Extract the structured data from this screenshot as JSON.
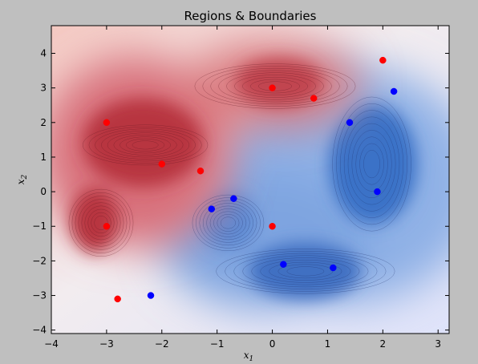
{
  "chart_data": {
    "type": "scatter",
    "title": "Regions & Boundaries",
    "xlabel": "x",
    "xlabel_sub": "1",
    "ylabel": "x",
    "ylabel_sub": "2",
    "xlim": [
      -4,
      3.2
    ],
    "ylim": [
      -4.1,
      4.8
    ],
    "xticks": [
      -4,
      -3,
      -2,
      -1,
      0,
      1,
      2,
      3
    ],
    "yticks": [
      -4,
      -3,
      -2,
      -1,
      0,
      1,
      2,
      3,
      4
    ],
    "background": "filled contour: red class region (upper-left) and blue class region (lower-right)",
    "colors": {
      "red": "#ff0000",
      "blue": "#0000ff",
      "red_region": "#c0303a",
      "blue_region": "#3a6fc4"
    },
    "series": [
      {
        "color": "red",
        "points": [
          {
            "x": -3.0,
            "y": 2.0
          },
          {
            "x": -3.0,
            "y": -1.0
          },
          {
            "x": -2.8,
            "y": -3.1
          },
          {
            "x": -2.0,
            "y": 0.8
          },
          {
            "x": -1.3,
            "y": 0.6
          },
          {
            "x": 0.0,
            "y": 3.0
          },
          {
            "x": 0.0,
            "y": -1.0
          },
          {
            "x": 0.75,
            "y": 2.7
          },
          {
            "x": 2.0,
            "y": 3.8
          }
        ]
      },
      {
        "color": "blue",
        "points": [
          {
            "x": -2.2,
            "y": -3.0
          },
          {
            "x": -1.1,
            "y": -0.5
          },
          {
            "x": -0.7,
            "y": -0.2
          },
          {
            "x": 0.2,
            "y": -2.1
          },
          {
            "x": 1.1,
            "y": -2.2
          },
          {
            "x": 1.4,
            "y": 2.0
          },
          {
            "x": 1.9,
            "y": 0.0
          },
          {
            "x": 2.2,
            "y": 2.9
          }
        ]
      }
    ]
  }
}
